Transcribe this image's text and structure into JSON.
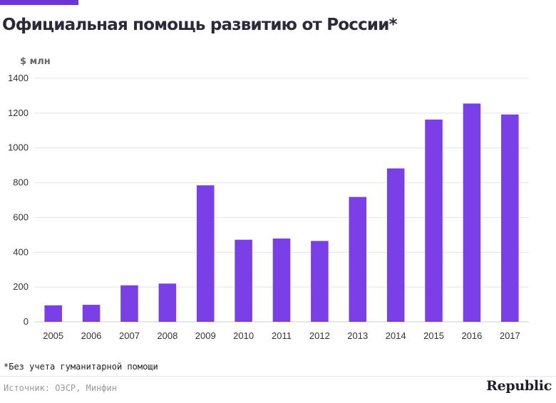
{
  "header": {
    "title": "Официальная помощь развитию от России*",
    "accent_color": "#6b35d9"
  },
  "chart_data": {
    "type": "bar",
    "title": "Официальная помощь развитию от России*",
    "ylabel": "$ млн",
    "xlabel": "",
    "categories": [
      "2005",
      "2006",
      "2007",
      "2008",
      "2009",
      "2010",
      "2011",
      "2012",
      "2013",
      "2014",
      "2015",
      "2016",
      "2017"
    ],
    "values": [
      95,
      98,
      210,
      220,
      785,
      472,
      479,
      465,
      718,
      882,
      1163,
      1255,
      1192
    ],
    "ylim": [
      0,
      1400
    ],
    "yticks": [
      0,
      200,
      400,
      600,
      800,
      1000,
      1200,
      1400
    ],
    "grid": true,
    "bar_color": "#7b3fe8"
  },
  "footer": {
    "note": "*Без учета гуманитарной помощи",
    "source": "Источник: ОЭСР, Минфин",
    "logo_text": "Republic"
  }
}
